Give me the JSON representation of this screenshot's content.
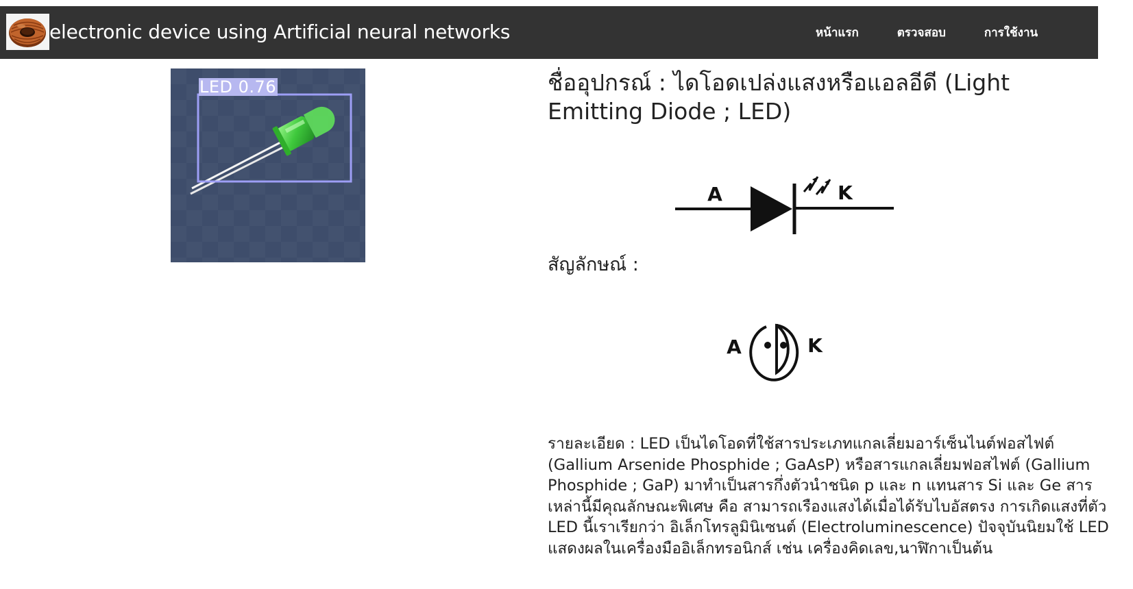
{
  "navbar": {
    "brand_text": "electronic device using Artificial neural networks",
    "logo_icon": "toroid-inductor-icon",
    "links": [
      "หน้าแรก",
      "ตรวจสอบ",
      "การใช้งาน"
    ]
  },
  "detection": {
    "label": "LED 0.76",
    "label_color": "#b7b8f0",
    "box_color": "#9d9ef5",
    "background_color": "#3e4d6b"
  },
  "device": {
    "title": "ชื่ออุปกรณ์ : ไดโอดเปล่งแสงหรือแอลอีดี (Light Emitting Diode ; LED)",
    "symbol_label": "สัญลักษณ์ :",
    "symbol_top": {
      "anode": "A",
      "cathode": "K"
    },
    "symbol_bottom": {
      "anode": "A",
      "cathode": "K"
    },
    "detail": "รายละเอียด : LED เป็นไดโอดที่ใช้สารประเภทแกลเลี่ยมอาร์เซ็นไนต์ฟอสไฟต์ (Gallium Arsenide Phosphide ; GaAsP) หรือสารแกลเลี่ยมฟอสไฟต์ (Gallium Phosphide ; GaP) มาทำเป็นสารกึ่งตัวนำชนิด p และ n แทนสาร Si และ Ge สารเหล่านี้มีคุณลักษณะพิเศษ คือ สามารถเรืองแสงได้เมื่อได้รับไบอัสตรง การเกิดแสงที่ตัว LED นี้เราเรียกว่า อิเล็กโทรลูมินิเซนต์ (Electroluminescence) ปัจจุบันนิยมใช้ LED แสดงผลในเครื่องมืออิเล็กทรอนิกส์ เช่น เครื่องคิดเลข,นาฬิกาเป็นต้น"
  }
}
